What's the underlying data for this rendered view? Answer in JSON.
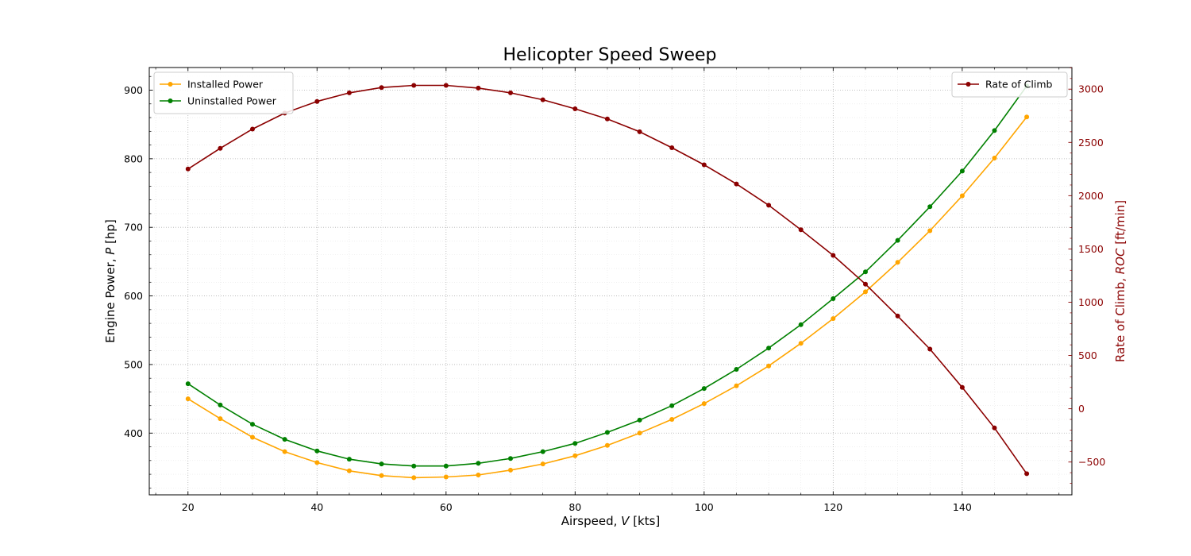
{
  "chart_data": {
    "type": "line",
    "title": "Helicopter Speed Sweep",
    "xlabel": "Airspeed, V [kts]",
    "xlabel_parts": [
      "Airspeed, ",
      "V",
      " [kts]"
    ],
    "ylabel": "Engine Power, P [hp]",
    "ylabel_parts": [
      "Engine Power, ",
      "P",
      " [hp]"
    ],
    "y2label": "Rate of Climb, ROC [ft/min]",
    "y2label_parts": [
      "Rate of Climb, ",
      "ROC",
      " [ft/min]"
    ],
    "xlim": [
      14,
      157
    ],
    "ylim": [
      310,
      933
    ],
    "y2lim": [
      -808,
      3203
    ],
    "xticks": [
      20,
      40,
      60,
      80,
      100,
      120,
      140
    ],
    "yticks": [
      400,
      500,
      600,
      700,
      800,
      900
    ],
    "y2ticks": [
      -500,
      0,
      500,
      1000,
      1500,
      2000,
      2500,
      3000
    ],
    "grid": true,
    "x": [
      20,
      25,
      30,
      35,
      40,
      45,
      50,
      55,
      60,
      65,
      70,
      75,
      80,
      85,
      90,
      95,
      100,
      105,
      110,
      115,
      120,
      125,
      130,
      135,
      140,
      145,
      150
    ],
    "series": [
      {
        "name": "Installed Power",
        "axis": "left",
        "color": "#ffa500",
        "values": [
          450,
          421,
          394,
          373,
          357,
          345,
          338,
          335,
          336,
          339,
          346,
          355,
          367,
          382,
          400,
          420,
          443,
          469,
          498,
          531,
          567,
          606,
          649,
          695,
          746,
          801,
          861
        ]
      },
      {
        "name": "Uninstalled Power",
        "axis": "left",
        "color": "#008000",
        "values": [
          472,
          441,
          413,
          391,
          374,
          362,
          355,
          352,
          352,
          356,
          363,
          373,
          385,
          401,
          419,
          440,
          465,
          493,
          524,
          558,
          596,
          635,
          681,
          730,
          782,
          841,
          906
        ]
      },
      {
        "name": "Rate of Climb",
        "axis": "right",
        "color": "#8b0000",
        "values": [
          2250,
          2445,
          2625,
          2775,
          2885,
          2965,
          3015,
          3035,
          3035,
          3010,
          2965,
          2900,
          2815,
          2720,
          2600,
          2450,
          2290,
          2110,
          1910,
          1680,
          1440,
          1170,
          870,
          560,
          200,
          -180,
          -610
        ]
      }
    ],
    "legend_left": {
      "placement": "upper-left",
      "items": [
        "Installed Power",
        "Uninstalled Power"
      ]
    },
    "legend_right": {
      "placement": "upper-right",
      "items": [
        "Rate of Climb"
      ]
    }
  }
}
